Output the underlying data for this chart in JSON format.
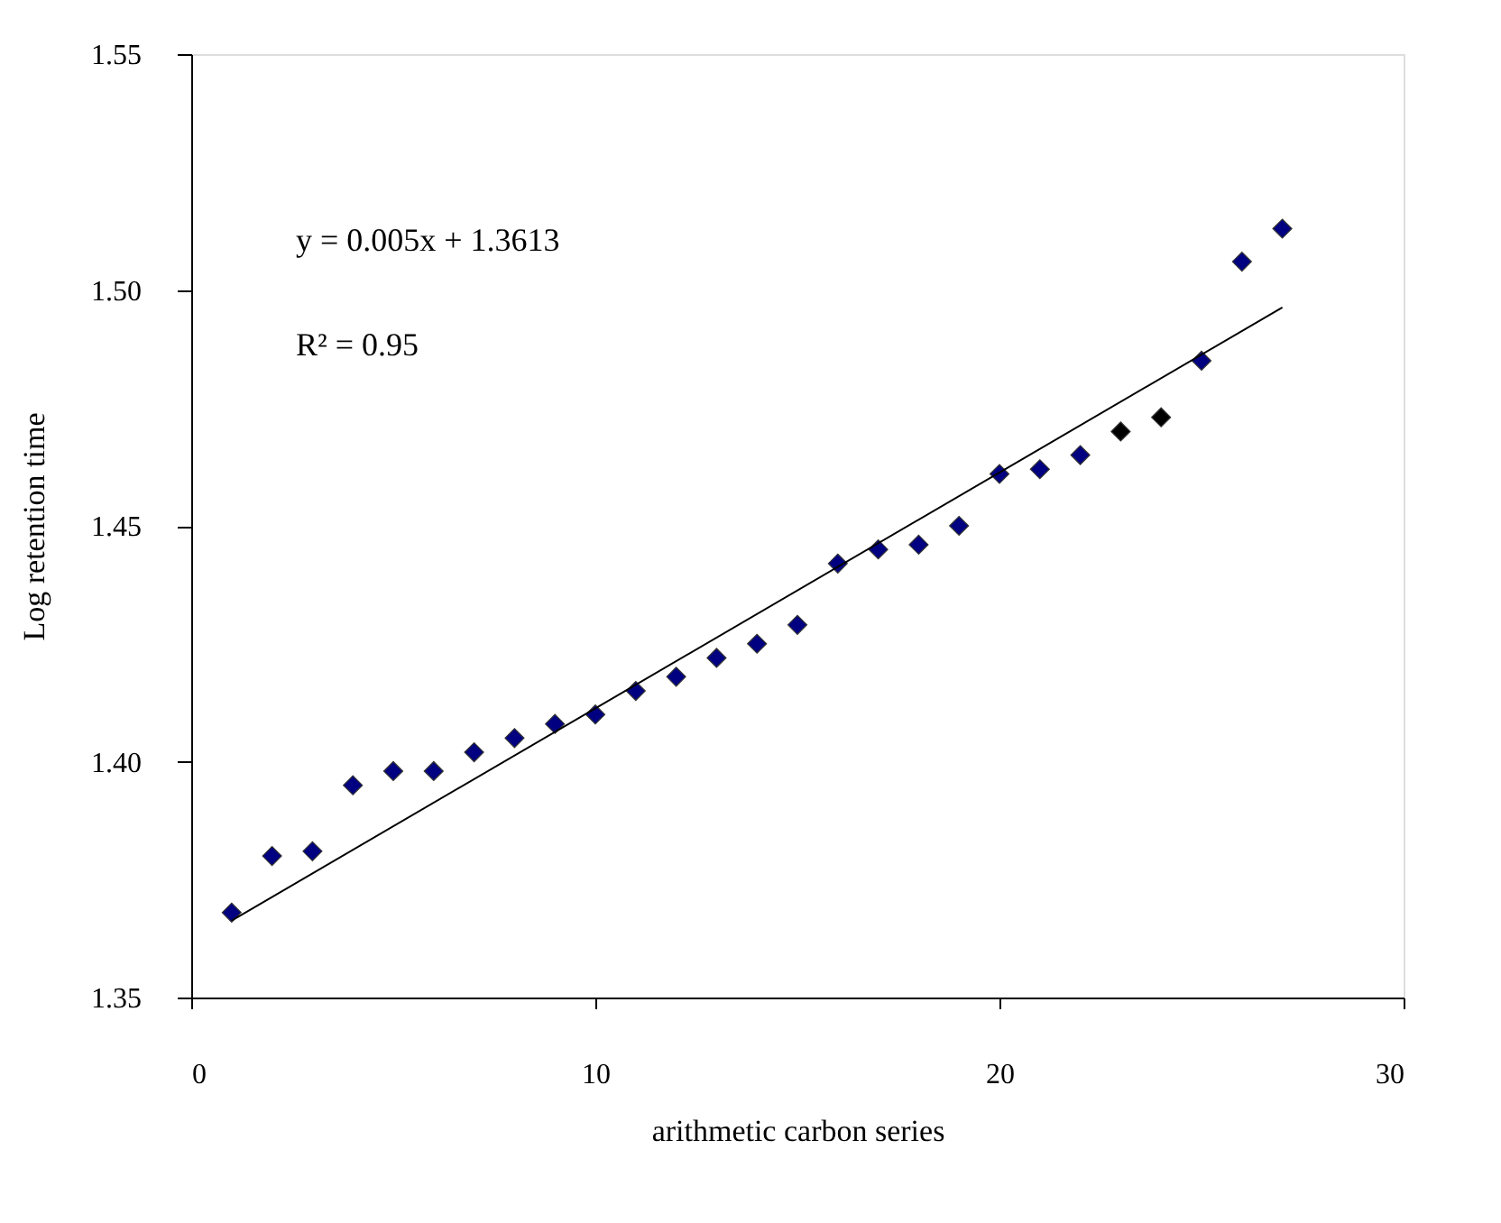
{
  "chart_data": {
    "type": "scatter",
    "xlabel": "arithmetic carbon series",
    "ylabel": "Log retention time",
    "annotations": [
      "y = 0.005x + 1.3613",
      "R² = 0.95"
    ],
    "xlim": [
      0,
      30
    ],
    "xticks": [
      0,
      10,
      20,
      30
    ],
    "ylim": [
      1.35,
      1.55
    ],
    "yticks": [
      1.35,
      {
        "value": 1.4,
        "label": "1.40"
      },
      1.45,
      {
        "value": 1.5,
        "label": "1.50"
      },
      1.55
    ],
    "grid": false,
    "marker": "diamond",
    "series": [
      {
        "x": [
          1,
          2,
          3,
          4,
          5,
          6,
          7,
          8,
          9,
          10,
          11,
          12,
          13,
          14,
          15,
          16,
          17,
          18,
          19,
          20,
          21,
          22,
          23,
          24,
          25,
          26,
          27
        ],
        "values": [
          1.368,
          1.38,
          1.381,
          1.395,
          1.398,
          1.398,
          1.402,
          1.405,
          1.408,
          1.41,
          1.415,
          1.418,
          1.422,
          1.425,
          1.429,
          1.442,
          1.445,
          1.446,
          1.45,
          1.461,
          1.462,
          1.465,
          1.47,
          1.473,
          1.485,
          1.506,
          1.513
        ],
        "colors": [
          "#000080",
          "#000080",
          "#000080",
          "#000080",
          "#000080",
          "#000080",
          "#000080",
          "#000080",
          "#000080",
          "#000080",
          "#000080",
          "#000080",
          "#000080",
          "#000080",
          "#000080",
          "#000080",
          "#000080",
          "#000080",
          "#000080",
          "#000080",
          "#000080",
          "#000080",
          "#000000",
          "#000000",
          "#000080",
          "#000080",
          "#000080"
        ]
      },
      {
        "type": "line",
        "x": [
          1,
          27
        ],
        "values": [
          1.3663,
          1.4963
        ],
        "color": "#000000",
        "line_style": "solid",
        "marker": "none"
      }
    ]
  }
}
